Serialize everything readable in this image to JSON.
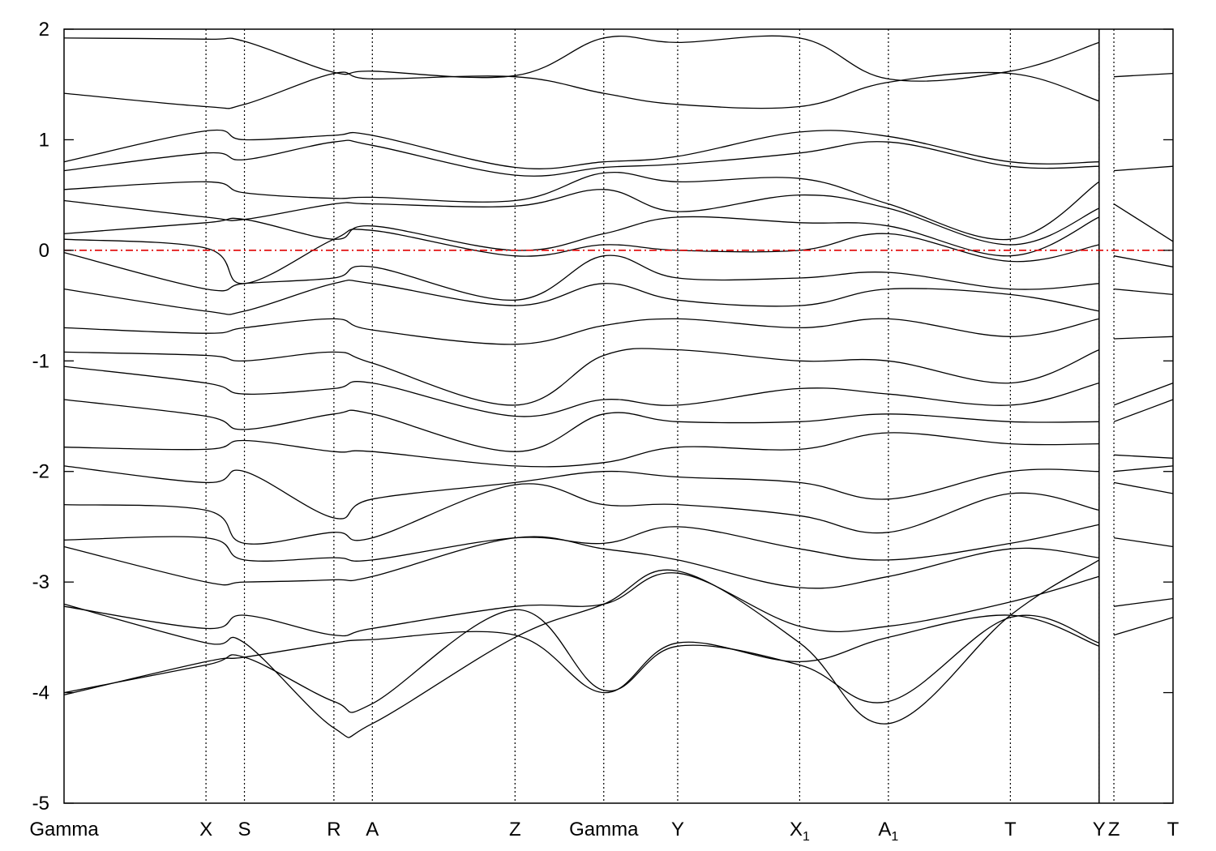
{
  "chart_data": {
    "type": "line",
    "title": "",
    "xlabel": "",
    "ylabel": "",
    "ylim": [
      -5,
      2
    ],
    "yticks": [
      -5,
      -4,
      -3,
      -2,
      -1,
      0,
      1,
      2
    ],
    "xlim": [
      0,
      15.0
    ],
    "grid": false,
    "legend": "none",
    "fermi_level": 0,
    "colors": {
      "bands": "#000000",
      "fermi": "#e00000",
      "kpath": "#000000"
    },
    "kpoints": [
      {
        "x": 0.0,
        "label": "Gamma",
        "sub": ""
      },
      {
        "x": 1.92,
        "label": "X",
        "sub": ""
      },
      {
        "x": 2.44,
        "label": "S",
        "sub": ""
      },
      {
        "x": 3.65,
        "label": "R",
        "sub": ""
      },
      {
        "x": 4.17,
        "label": "A",
        "sub": ""
      },
      {
        "x": 6.1,
        "label": "Z",
        "sub": ""
      },
      {
        "x": 7.3,
        "label": "Gamma",
        "sub": ""
      },
      {
        "x": 8.3,
        "label": "Y",
        "sub": ""
      },
      {
        "x": 9.95,
        "label": "X",
        "sub": "1"
      },
      {
        "x": 11.15,
        "label": "A",
        "sub": "1"
      },
      {
        "x": 12.8,
        "label": "T",
        "sub": ""
      },
      {
        "x": 14.0,
        "label": "Y",
        "sub": ""
      },
      {
        "x": 14.2,
        "label": "Z",
        "sub": ""
      },
      {
        "x": 15.0,
        "label": "T",
        "sub": ""
      }
    ],
    "segment_breaks": [
      14.0
    ],
    "series": [
      {
        "x": [
          0.0,
          1.92,
          2.44,
          3.65,
          4.17,
          6.1,
          7.3,
          8.3,
          9.95,
          11.15,
          12.8,
          14.0
        ],
        "values": [
          1.92,
          1.91,
          1.89,
          1.61,
          1.62,
          1.58,
          1.92,
          1.88,
          1.92,
          1.55,
          1.62,
          1.88
        ]
      },
      {
        "x": [
          0.0,
          1.92,
          2.44,
          3.65,
          4.17,
          6.1,
          7.3,
          8.3,
          9.95,
          11.15,
          12.8,
          14.0
        ],
        "values": [
          1.42,
          1.3,
          1.32,
          1.6,
          1.55,
          1.57,
          1.42,
          1.32,
          1.3,
          1.52,
          1.6,
          1.35
        ]
      },
      {
        "x": [
          0.0,
          1.92,
          2.44,
          3.65,
          4.17,
          6.1,
          7.3,
          8.3,
          9.95,
          11.15,
          12.8,
          14.0
        ],
        "values": [
          0.8,
          1.08,
          1.0,
          1.04,
          1.04,
          0.75,
          0.8,
          0.85,
          1.07,
          1.03,
          0.8,
          0.8
        ]
      },
      {
        "x": [
          0.0,
          1.92,
          2.44,
          3.65,
          4.17,
          6.1,
          7.3,
          8.3,
          9.95,
          11.15,
          12.8,
          14.0
        ],
        "values": [
          0.72,
          0.88,
          0.82,
          0.98,
          0.95,
          0.68,
          0.75,
          0.78,
          0.88,
          0.98,
          0.76,
          0.76
        ]
      },
      {
        "x": [
          0.0,
          1.92,
          2.44,
          3.65,
          4.17,
          6.1,
          7.3,
          8.3,
          9.95,
          11.15,
          12.8,
          14.0
        ],
        "values": [
          0.55,
          0.62,
          0.52,
          0.47,
          0.48,
          0.45,
          0.7,
          0.62,
          0.65,
          0.42,
          0.1,
          0.62
        ]
      },
      {
        "x": [
          0.0,
          1.92,
          2.44,
          3.65,
          4.17,
          6.1,
          7.3,
          8.3,
          9.95,
          11.15,
          12.8,
          14.0
        ],
        "values": [
          0.45,
          0.3,
          0.28,
          0.42,
          0.42,
          0.4,
          0.55,
          0.35,
          0.5,
          0.38,
          0.05,
          0.38
        ]
      },
      {
        "x": [
          0.0,
          1.92,
          2.44,
          3.65,
          4.17,
          6.1,
          7.3,
          8.3,
          9.95,
          11.15,
          12.8,
          14.0
        ],
        "values": [
          0.15,
          0.25,
          0.28,
          0.1,
          0.22,
          0.0,
          0.15,
          0.3,
          0.25,
          0.22,
          -0.05,
          0.3
        ]
      },
      {
        "x": [
          0.0,
          1.92,
          2.44,
          3.65,
          4.17,
          6.1,
          7.3,
          8.3,
          9.95,
          11.15,
          12.8,
          14.0
        ],
        "values": [
          0.1,
          0.02,
          -0.3,
          0.1,
          0.18,
          -0.05,
          0.05,
          0.0,
          0.0,
          0.15,
          -0.1,
          0.05
        ]
      },
      {
        "x": [
          0.0,
          1.92,
          2.44,
          3.65,
          4.17,
          6.1,
          7.3,
          8.3,
          9.95,
          11.15,
          12.8,
          14.0
        ],
        "values": [
          -0.02,
          -0.35,
          -0.3,
          -0.25,
          -0.15,
          -0.45,
          -0.05,
          -0.25,
          -0.25,
          -0.2,
          -0.35,
          -0.3
        ]
      },
      {
        "x": [
          0.0,
          1.92,
          2.44,
          3.65,
          4.17,
          6.1,
          7.3,
          8.3,
          9.95,
          11.15,
          12.8,
          14.0
        ],
        "values": [
          -0.35,
          -0.55,
          -0.55,
          -0.3,
          -0.3,
          -0.5,
          -0.3,
          -0.45,
          -0.5,
          -0.35,
          -0.4,
          -0.55
        ]
      },
      {
        "x": [
          0.0,
          1.92,
          2.44,
          3.65,
          4.17,
          6.1,
          7.3,
          8.3,
          9.95,
          11.15,
          12.8,
          14.0
        ],
        "values": [
          -0.7,
          -0.75,
          -0.7,
          -0.62,
          -0.72,
          -0.85,
          -0.68,
          -0.62,
          -0.7,
          -0.62,
          -0.78,
          -0.62
        ]
      },
      {
        "x": [
          0.0,
          1.92,
          2.44,
          3.65,
          4.17,
          6.1,
          7.3,
          8.3,
          9.95,
          11.15,
          12.8,
          14.0
        ],
        "values": [
          -0.92,
          -0.95,
          -1.0,
          -0.92,
          -1.02,
          -1.4,
          -0.95,
          -0.9,
          -1.0,
          -1.0,
          -1.2,
          -0.9
        ]
      },
      {
        "x": [
          0.0,
          1.92,
          2.44,
          3.65,
          4.17,
          6.1,
          7.3,
          8.3,
          9.95,
          11.15,
          12.8,
          14.0
        ],
        "values": [
          -1.05,
          -1.2,
          -1.3,
          -1.25,
          -1.2,
          -1.5,
          -1.35,
          -1.4,
          -1.25,
          -1.3,
          -1.4,
          -1.2
        ]
      },
      {
        "x": [
          0.0,
          1.92,
          2.44,
          3.65,
          4.17,
          6.1,
          7.3,
          8.3,
          9.95,
          11.15,
          12.8,
          14.0
        ],
        "values": [
          -1.35,
          -1.5,
          -1.62,
          -1.48,
          -1.48,
          -1.82,
          -1.48,
          -1.55,
          -1.55,
          -1.48,
          -1.55,
          -1.55
        ]
      },
      {
        "x": [
          0.0,
          1.92,
          2.44,
          3.65,
          4.17,
          6.1,
          7.3,
          8.3,
          9.95,
          11.15,
          12.8,
          14.0
        ],
        "values": [
          -1.78,
          -1.8,
          -1.72,
          -1.82,
          -1.82,
          -1.95,
          -1.92,
          -1.78,
          -1.8,
          -1.65,
          -1.75,
          -1.75
        ]
      },
      {
        "x": [
          0.0,
          1.92,
          2.44,
          3.65,
          4.17,
          6.1,
          7.3,
          8.3,
          9.95,
          11.15,
          12.8,
          14.0
        ],
        "values": [
          -1.95,
          -2.1,
          -2.0,
          -2.42,
          -2.25,
          -2.1,
          -2.0,
          -2.05,
          -2.1,
          -2.25,
          -2.0,
          -2.0
        ]
      },
      {
        "x": [
          0.0,
          1.92,
          2.44,
          3.65,
          4.17,
          6.1,
          7.3,
          8.3,
          9.95,
          11.15,
          12.8,
          14.0
        ],
        "values": [
          -2.3,
          -2.35,
          -2.65,
          -2.55,
          -2.6,
          -2.12,
          -2.3,
          -2.3,
          -2.4,
          -2.55,
          -2.2,
          -2.35
        ]
      },
      {
        "x": [
          0.0,
          1.92,
          2.44,
          3.65,
          4.17,
          6.1,
          7.3,
          8.3,
          9.95,
          11.15,
          12.8,
          14.0
        ],
        "values": [
          -2.62,
          -2.6,
          -2.8,
          -2.78,
          -2.8,
          -2.6,
          -2.65,
          -2.5,
          -2.7,
          -2.8,
          -2.65,
          -2.48
        ]
      },
      {
        "x": [
          0.0,
          1.92,
          2.44,
          3.65,
          4.17,
          6.1,
          7.3,
          8.3,
          9.95,
          11.15,
          12.8,
          14.0
        ],
        "values": [
          -2.68,
          -3.0,
          -3.0,
          -2.98,
          -2.95,
          -2.6,
          -2.7,
          -2.8,
          -3.05,
          -2.95,
          -2.7,
          -2.78
        ]
      },
      {
        "x": [
          0.0,
          1.92,
          2.44,
          3.65,
          4.17,
          6.1,
          7.3,
          8.3,
          9.95,
          11.15,
          12.8,
          14.0
        ],
        "values": [
          -3.22,
          -3.42,
          -3.3,
          -3.48,
          -3.42,
          -3.22,
          -3.2,
          -2.92,
          -3.4,
          -3.4,
          -3.18,
          -2.95
        ]
      },
      {
        "x": [
          0.0,
          1.92,
          2.44,
          3.65,
          4.17,
          6.1,
          7.3,
          8.3,
          9.95,
          11.15,
          12.8,
          14.0
        ],
        "values": [
          -4.02,
          -3.72,
          -3.68,
          -3.55,
          -3.52,
          -3.48,
          -4.0,
          -3.55,
          -3.72,
          -3.5,
          -3.3,
          -3.58
        ]
      },
      {
        "x": [
          0.0,
          1.92,
          2.44,
          3.65,
          4.17,
          6.1,
          7.3,
          8.3,
          9.95,
          11.15,
          12.8,
          14.0
        ],
        "values": [
          -4.0,
          -3.75,
          -3.68,
          -4.08,
          -4.1,
          -3.25,
          -3.98,
          -3.58,
          -3.75,
          -4.08,
          -3.32,
          -3.55
        ]
      },
      {
        "x": [
          0.0,
          1.92,
          2.44,
          3.65,
          4.17,
          6.1,
          7.3,
          8.3,
          9.95,
          11.15,
          12.8,
          14.0
        ],
        "values": [
          -3.2,
          -3.55,
          -3.55,
          -4.32,
          -4.28,
          -3.5,
          -3.2,
          -2.9,
          -3.55,
          -4.28,
          -3.3,
          -2.8
        ]
      },
      {
        "x": [
          14.2,
          15.0
        ],
        "values": [
          1.57,
          1.6
        ]
      },
      {
        "x": [
          14.2,
          15.0
        ],
        "values": [
          0.72,
          0.76
        ]
      },
      {
        "x": [
          14.2,
          15.0
        ],
        "values": [
          0.42,
          0.08
        ]
      },
      {
        "x": [
          14.2,
          15.0
        ],
        "values": [
          -0.05,
          -0.15
        ]
      },
      {
        "x": [
          14.2,
          15.0
        ],
        "values": [
          -0.35,
          -0.4
        ]
      },
      {
        "x": [
          14.2,
          15.0
        ],
        "values": [
          -0.8,
          -0.78
        ]
      },
      {
        "x": [
          14.2,
          15.0
        ],
        "values": [
          -1.4,
          -1.2
        ]
      },
      {
        "x": [
          14.2,
          15.0
        ],
        "values": [
          -1.55,
          -1.35
        ]
      },
      {
        "x": [
          14.2,
          15.0
        ],
        "values": [
          -1.85,
          -1.88
        ]
      },
      {
        "x": [
          14.2,
          15.0
        ],
        "values": [
          -2.0,
          -1.95
        ]
      },
      {
        "x": [
          14.2,
          15.0
        ],
        "values": [
          -2.1,
          -2.2
        ]
      },
      {
        "x": [
          14.2,
          15.0
        ],
        "values": [
          -2.6,
          -2.68
        ]
      },
      {
        "x": [
          14.2,
          15.0
        ],
        "values": [
          -3.22,
          -3.15
        ]
      },
      {
        "x": [
          14.2,
          15.0
        ],
        "values": [
          -3.48,
          -3.32
        ]
      }
    ]
  }
}
